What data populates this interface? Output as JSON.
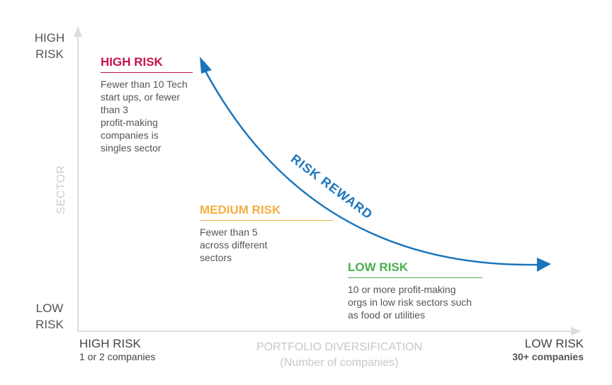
{
  "y_axis": {
    "top_label": [
      "HIGH",
      "RISK"
    ],
    "bottom_label": [
      "LOW",
      "RISK"
    ],
    "title": "SECTOR"
  },
  "x_axis": {
    "left_label": "HIGH RISK",
    "left_sublabel": "1 or 2 companies",
    "right_label": "LOW RISK",
    "right_sublabel": "30+ companies",
    "title": "PORTFOLIO DIVERSIFICATION",
    "subtitle": "(Number of companies)"
  },
  "curve": {
    "label": "RISK REWARD",
    "color": "#1a75bc"
  },
  "zones": {
    "high": {
      "title": "HIGH RISK",
      "color": "#c8134a",
      "description": [
        "Fewer than 10 Tech",
        "start ups, or fewer",
        "than 3",
        "profit-making",
        "companies is",
        "singles sector"
      ]
    },
    "medium": {
      "title": "MEDIUM RISK",
      "color": "#f5b042",
      "description": [
        "Fewer than 5",
        "across different",
        "sectors"
      ]
    },
    "low": {
      "title": "LOW RISK",
      "color": "#4cae4c",
      "description": [
        "10 or more profit-making",
        "orgs in low risk sectors such",
        "as food or utilities"
      ]
    }
  },
  "colors": {
    "axis": "#dddddd",
    "text": "#555555",
    "muted": "#c8c8c8"
  }
}
